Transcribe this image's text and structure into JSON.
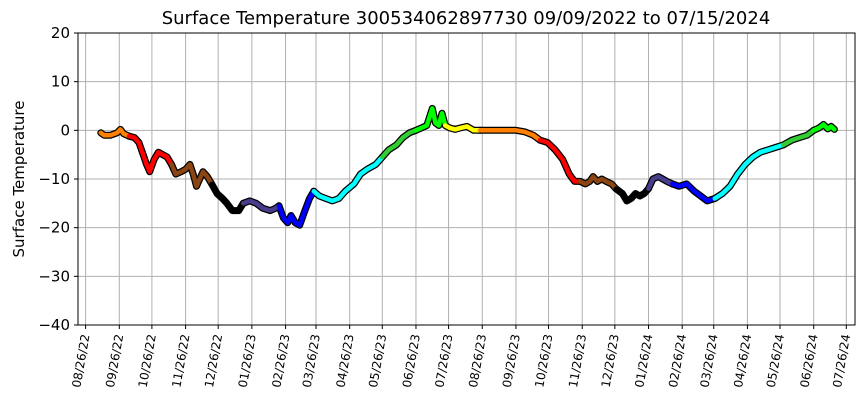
{
  "chart_data": {
    "type": "line",
    "title": "Surface Temperature 300534062897730  09/09/2022 to 07/15/2024",
    "xlabel": "",
    "ylabel": "Surface Temperature",
    "ylim": [
      -40,
      20
    ],
    "yticks": [
      "20",
      "10",
      "0",
      "−10",
      "−20",
      "−30",
      "−40"
    ],
    "xlim": [
      "2022-08-19",
      "2024-08-03"
    ],
    "xticks": [
      "08/26/22",
      "09/26/22",
      "10/26/22",
      "11/26/22",
      "12/26/22",
      "01/26/23",
      "02/26/23",
      "03/26/23",
      "04/26/23",
      "05/26/23",
      "06/26/23",
      "07/26/23",
      "08/26/23",
      "09/26/23",
      "10/26/23",
      "11/26/23",
      "12/26/23",
      "01/26/24",
      "02/26/24",
      "03/26/24",
      "04/26/24",
      "05/26/24",
      "06/26/24",
      "07/26/24"
    ],
    "grid": true,
    "line_outline_color": "#000000",
    "series": [
      {
        "color": "#ff7f00",
        "points": [
          [
            "2022-09-09",
            -0.5
          ],
          [
            "2022-09-12",
            -1
          ],
          [
            "2022-09-18",
            -1
          ],
          [
            "2022-09-24",
            -0.5
          ],
          [
            "2022-09-27",
            0.2
          ],
          [
            "2022-09-30",
            -0.7
          ],
          [
            "2022-10-05",
            -1.2
          ]
        ]
      },
      {
        "color": "#ff0000",
        "points": [
          [
            "2022-10-05",
            -1.2
          ],
          [
            "2022-10-10",
            -1.5
          ],
          [
            "2022-10-14",
            -2.5
          ],
          [
            "2022-10-18",
            -5
          ],
          [
            "2022-10-21",
            -7
          ],
          [
            "2022-10-24",
            -8.5
          ],
          [
            "2022-10-28",
            -6
          ],
          [
            "2022-11-01",
            -4.5
          ],
          [
            "2022-11-05",
            -5
          ],
          [
            "2022-11-09",
            -5.5
          ],
          [
            "2022-11-13",
            -7
          ]
        ]
      },
      {
        "color": "#8b4513",
        "points": [
          [
            "2022-11-13",
            -7
          ],
          [
            "2022-11-17",
            -9
          ],
          [
            "2022-11-22",
            -8.5
          ],
          [
            "2022-11-26",
            -8
          ],
          [
            "2022-11-30",
            -7
          ],
          [
            "2022-12-03",
            -9
          ],
          [
            "2022-12-06",
            -11.5
          ],
          [
            "2022-12-09",
            -10
          ],
          [
            "2022-12-12",
            -8.5
          ],
          [
            "2022-12-16",
            -9.5
          ],
          [
            "2022-12-20",
            -11
          ]
        ]
      },
      {
        "color": "#000000",
        "points": [
          [
            "2022-12-20",
            -11
          ],
          [
            "2022-12-25",
            -13
          ],
          [
            "2022-12-30",
            -14
          ],
          [
            "2023-01-03",
            -15
          ],
          [
            "2023-01-08",
            -16.5
          ],
          [
            "2023-01-14",
            -16.5
          ],
          [
            "2023-01-18",
            -15
          ]
        ]
      },
      {
        "color": "#483d8b",
        "points": [
          [
            "2023-01-18",
            -15
          ],
          [
            "2023-01-24",
            -14.5
          ],
          [
            "2023-01-30",
            -15
          ],
          [
            "2023-02-05",
            -16
          ],
          [
            "2023-02-12",
            -16.5
          ],
          [
            "2023-02-17",
            -16
          ],
          [
            "2023-02-20",
            -15.5
          ]
        ]
      },
      {
        "color": "#0000ff",
        "points": [
          [
            "2023-02-20",
            -15.5
          ],
          [
            "2023-02-24",
            -18
          ],
          [
            "2023-02-28",
            -19
          ],
          [
            "2023-03-03",
            -17.5
          ],
          [
            "2023-03-07",
            -19
          ],
          [
            "2023-03-11",
            -19.5
          ],
          [
            "2023-03-15",
            -17
          ],
          [
            "2023-03-20",
            -14
          ],
          [
            "2023-03-24",
            -12.5
          ]
        ]
      },
      {
        "color": "#00ffff",
        "points": [
          [
            "2023-03-24",
            -12.5
          ],
          [
            "2023-03-29",
            -13.5
          ],
          [
            "2023-04-04",
            -14
          ],
          [
            "2023-04-10",
            -14.5
          ],
          [
            "2023-04-16",
            -14
          ],
          [
            "2023-04-22",
            -12.5
          ],
          [
            "2023-04-30",
            -11
          ],
          [
            "2023-05-06",
            -9
          ],
          [
            "2023-05-12",
            -8
          ],
          [
            "2023-05-20",
            -7
          ],
          [
            "2023-05-26",
            -5.5
          ]
        ]
      },
      {
        "color": "#32cd32",
        "points": [
          [
            "2023-05-26",
            -5.5
          ],
          [
            "2023-06-01",
            -4
          ],
          [
            "2023-06-08",
            -3
          ],
          [
            "2023-06-14",
            -1.5
          ],
          [
            "2023-06-20",
            -0.5
          ],
          [
            "2023-06-26",
            0
          ]
        ]
      },
      {
        "color": "#00ff00",
        "points": [
          [
            "2023-06-26",
            0
          ],
          [
            "2023-07-01",
            0.5
          ],
          [
            "2023-07-06",
            1
          ],
          [
            "2023-07-11",
            4.5
          ],
          [
            "2023-07-14",
            1.5
          ],
          [
            "2023-07-17",
            1
          ],
          [
            "2023-07-20",
            3.5
          ],
          [
            "2023-07-23",
            1
          ]
        ]
      },
      {
        "color": "#ffff00",
        "points": [
          [
            "2023-07-23",
            1
          ],
          [
            "2023-07-27",
            0.5
          ],
          [
            "2023-08-01",
            0.2
          ],
          [
            "2023-08-06",
            0.5
          ],
          [
            "2023-08-12",
            0.8
          ],
          [
            "2023-08-18",
            0
          ],
          [
            "2023-08-24",
            0
          ]
        ]
      },
      {
        "color": "#ff7f00",
        "points": [
          [
            "2023-08-24",
            0
          ],
          [
            "2023-09-10",
            0
          ],
          [
            "2023-09-26",
            0
          ],
          [
            "2023-10-04",
            -0.3
          ],
          [
            "2023-10-12",
            -1
          ],
          [
            "2023-10-18",
            -2
          ]
        ]
      },
      {
        "color": "#ff0000",
        "points": [
          [
            "2023-10-18",
            -2
          ],
          [
            "2023-10-25",
            -2.5
          ],
          [
            "2023-11-01",
            -4
          ],
          [
            "2023-11-08",
            -6
          ],
          [
            "2023-11-14",
            -9
          ],
          [
            "2023-11-19",
            -10.5
          ],
          [
            "2023-11-24",
            -10.5
          ]
        ]
      },
      {
        "color": "#8b4513",
        "points": [
          [
            "2023-11-24",
            -10.5
          ],
          [
            "2023-11-29",
            -11
          ],
          [
            "2023-12-03",
            -10.5
          ],
          [
            "2023-12-06",
            -9.5
          ],
          [
            "2023-12-10",
            -10.5
          ],
          [
            "2023-12-14",
            -10
          ],
          [
            "2023-12-18",
            -10.5
          ],
          [
            "2023-12-23",
            -11
          ],
          [
            "2023-12-27",
            -12
          ]
        ]
      },
      {
        "color": "#000000",
        "points": [
          [
            "2023-12-27",
            -12
          ],
          [
            "2024-01-02",
            -13
          ],
          [
            "2024-01-06",
            -14.5
          ],
          [
            "2024-01-10",
            -14
          ],
          [
            "2024-01-14",
            -13
          ],
          [
            "2024-01-18",
            -13.5
          ],
          [
            "2024-01-22",
            -13
          ],
          [
            "2024-01-26",
            -12
          ]
        ]
      },
      {
        "color": "#483d8b",
        "points": [
          [
            "2024-01-26",
            -12
          ],
          [
            "2024-01-30",
            -10
          ],
          [
            "2024-02-04",
            -9.5
          ],
          [
            "2024-02-08",
            -10
          ],
          [
            "2024-02-12",
            -10.5
          ],
          [
            "2024-02-17",
            -11
          ]
        ]
      },
      {
        "color": "#0000ff",
        "points": [
          [
            "2024-02-17",
            -11
          ],
          [
            "2024-02-23",
            -11.5
          ],
          [
            "2024-03-01",
            -11
          ],
          [
            "2024-03-08",
            -12.5
          ],
          [
            "2024-03-14",
            -13.5
          ],
          [
            "2024-03-20",
            -14.5
          ],
          [
            "2024-03-27",
            -14
          ]
        ]
      },
      {
        "color": "#00ffff",
        "points": [
          [
            "2024-03-27",
            -14
          ],
          [
            "2024-04-03",
            -13
          ],
          [
            "2024-04-10",
            -11.5
          ],
          [
            "2024-04-17",
            -9
          ],
          [
            "2024-04-24",
            -7
          ],
          [
            "2024-05-01",
            -5.5
          ],
          [
            "2024-05-08",
            -4.5
          ],
          [
            "2024-05-15",
            -4
          ],
          [
            "2024-05-22",
            -3.5
          ],
          [
            "2024-05-29",
            -3
          ]
        ]
      },
      {
        "color": "#32cd32",
        "points": [
          [
            "2024-05-29",
            -3
          ],
          [
            "2024-06-06",
            -2
          ],
          [
            "2024-06-13",
            -1.5
          ],
          [
            "2024-06-20",
            -1
          ],
          [
            "2024-06-26",
            0
          ]
        ]
      },
      {
        "color": "#00ff00",
        "points": [
          [
            "2024-06-26",
            0
          ],
          [
            "2024-07-01",
            0.5
          ],
          [
            "2024-07-05",
            1.2
          ],
          [
            "2024-07-09",
            0.3
          ],
          [
            "2024-07-12",
            0.8
          ],
          [
            "2024-07-15",
            0.2
          ]
        ]
      }
    ]
  }
}
